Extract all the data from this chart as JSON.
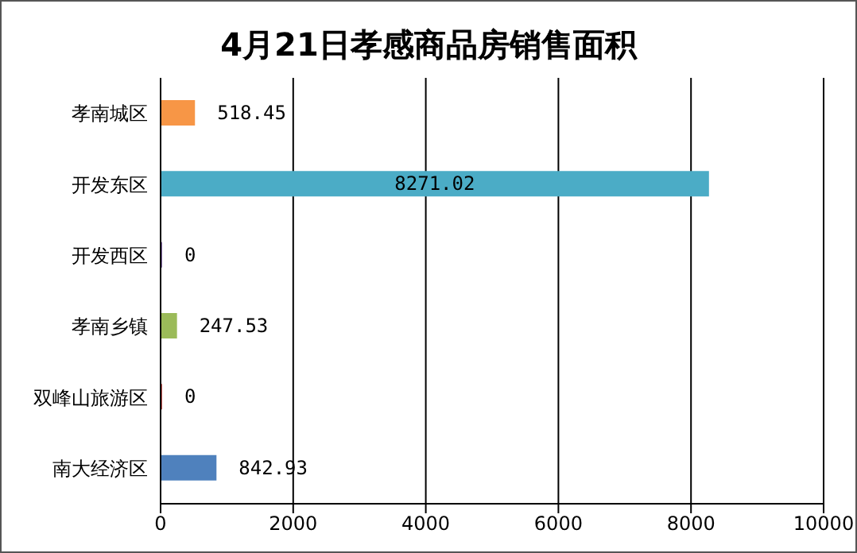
{
  "chart_data": {
    "type": "bar",
    "orientation": "horizontal",
    "title": "4月21日孝感商品房销售面积",
    "categories": [
      "孝南城区",
      "开发东区",
      "开发西区",
      "孝南乡镇",
      "双峰山旅游区",
      "南大经济区"
    ],
    "values": [
      518.45,
      8271.02,
      0,
      247.53,
      0,
      842.93
    ],
    "colors": [
      "#f79646",
      "#4bacc6",
      "#8064a2",
      "#9bbb59",
      "#c0504d",
      "#4f81bd"
    ],
    "xlim": [
      0,
      10000
    ],
    "xticks": [
      0,
      2000,
      4000,
      6000,
      8000,
      10000
    ],
    "grid": "x",
    "data_labels": true
  }
}
